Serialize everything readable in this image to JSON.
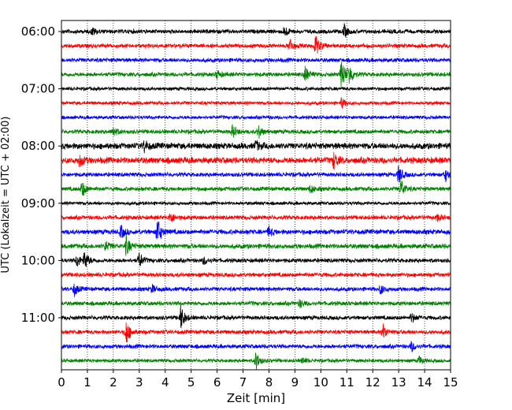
{
  "chart_data": {
    "type": "line",
    "title": "",
    "xlabel": "Zeit  [min]",
    "ylabel": "UTC (Lokalzeit = UTC + 02:00)",
    "xlim": [
      0,
      15
    ],
    "x_ticks": [
      "0",
      "1",
      "2",
      "3",
      "4",
      "5",
      "6",
      "7",
      "8",
      "9",
      "10",
      "11",
      "12",
      "13",
      "14",
      "15"
    ],
    "y_ticks": [
      "06:00",
      "07:00",
      "08:00",
      "09:00",
      "10:00",
      "11:00"
    ],
    "grid": "vertical dotted",
    "colors": [
      "#000000",
      "#ff0000",
      "#0000ff",
      "#008000"
    ],
    "rows": [
      {
        "time": "06:00",
        "color": "#000000",
        "amp": 3,
        "events": [
          [
            1.2,
            5
          ],
          [
            8.6,
            7
          ],
          [
            10.9,
            8
          ]
        ]
      },
      {
        "time": "06:15",
        "color": "#ff0000",
        "amp": 3,
        "events": [
          [
            8.8,
            9
          ],
          [
            9.8,
            14
          ]
        ]
      },
      {
        "time": "06:30",
        "color": "#0000ff",
        "amp": 3,
        "events": []
      },
      {
        "time": "06:45",
        "color": "#008000",
        "amp": 3,
        "events": [
          [
            6,
            5
          ],
          [
            9.4,
            10
          ],
          [
            10.8,
            22
          ],
          [
            11.1,
            12
          ]
        ]
      },
      {
        "time": "07:00",
        "color": "#000000",
        "amp": 2.5,
        "events": []
      },
      {
        "time": "07:15",
        "color": "#ff0000",
        "amp": 2.5,
        "events": [
          [
            10.8,
            6
          ]
        ]
      },
      {
        "time": "07:30",
        "color": "#0000ff",
        "amp": 2.5,
        "events": []
      },
      {
        "time": "07:45",
        "color": "#008000",
        "amp": 3,
        "events": [
          [
            2,
            6
          ],
          [
            6.6,
            8
          ],
          [
            7.6,
            8
          ]
        ]
      },
      {
        "time": "08:00",
        "color": "#000000",
        "amp": 4.5,
        "events": [
          [
            3.2,
            7
          ],
          [
            7.5,
            6
          ]
        ]
      },
      {
        "time": "08:15",
        "color": "#ff0000",
        "amp": 4.5,
        "events": [
          [
            0.7,
            8
          ],
          [
            10.5,
            10
          ]
        ]
      },
      {
        "time": "08:30",
        "color": "#0000ff",
        "amp": 3,
        "events": [
          [
            13,
            12
          ],
          [
            14.8,
            8
          ]
        ]
      },
      {
        "time": "08:45",
        "color": "#008000",
        "amp": 3,
        "events": [
          [
            0.8,
            10
          ],
          [
            13.1,
            12
          ],
          [
            9.6,
            5
          ]
        ]
      },
      {
        "time": "09:00",
        "color": "#000000",
        "amp": 2.5,
        "events": []
      },
      {
        "time": "09:15",
        "color": "#ff0000",
        "amp": 3,
        "events": [
          [
            4.2,
            7
          ],
          [
            14.5,
            4
          ]
        ]
      },
      {
        "time": "09:30",
        "color": "#0000ff",
        "amp": 3.5,
        "events": [
          [
            2.3,
            8
          ],
          [
            3.7,
            18
          ],
          [
            8,
            6
          ]
        ]
      },
      {
        "time": "09:45",
        "color": "#008000",
        "amp": 3.5,
        "events": [
          [
            2.5,
            12
          ],
          [
            1.7,
            6
          ]
        ]
      },
      {
        "time": "10:00",
        "color": "#000000",
        "amp": 3,
        "events": [
          [
            0.6,
            8
          ],
          [
            0.9,
            12
          ],
          [
            3,
            10
          ],
          [
            5.5,
            5
          ]
        ]
      },
      {
        "time": "10:15",
        "color": "#ff0000",
        "amp": 3,
        "events": []
      },
      {
        "time": "10:30",
        "color": "#0000ff",
        "amp": 3,
        "events": [
          [
            0.5,
            8
          ],
          [
            3.5,
            5
          ],
          [
            12.3,
            6
          ]
        ]
      },
      {
        "time": "10:45",
        "color": "#008000",
        "amp": 3,
        "events": [
          [
            9.2,
            5
          ]
        ]
      },
      {
        "time": "11:00",
        "color": "#000000",
        "amp": 3,
        "events": [
          [
            4.6,
            16
          ],
          [
            13.5,
            6
          ]
        ]
      },
      {
        "time": "11:15",
        "color": "#ff0000",
        "amp": 3,
        "events": [
          [
            2.5,
            16
          ],
          [
            12.4,
            9
          ]
        ]
      },
      {
        "time": "11:30",
        "color": "#0000ff",
        "amp": 3,
        "events": [
          [
            13.5,
            6
          ]
        ]
      },
      {
        "time": "11:45",
        "color": "#008000",
        "amp": 2.5,
        "events": [
          [
            7.5,
            12
          ],
          [
            9.3,
            4
          ],
          [
            13.8,
            5
          ]
        ]
      }
    ]
  }
}
